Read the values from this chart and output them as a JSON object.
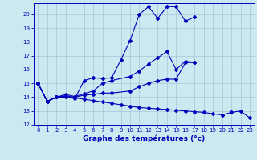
{
  "xlabel": "Graphe des températures (°c)",
  "bg_color": "#cce8f0",
  "grid_color": "#a0c8d8",
  "line_color": "#0000bb",
  "xlim": [
    -0.5,
    23.5
  ],
  "ylim": [
    12,
    20.8
  ],
  "xticks": [
    0,
    1,
    2,
    3,
    4,
    5,
    6,
    7,
    8,
    9,
    10,
    11,
    12,
    13,
    14,
    15,
    16,
    17,
    18,
    19,
    20,
    21,
    22,
    23
  ],
  "yticks": [
    12,
    13,
    14,
    15,
    16,
    17,
    18,
    19,
    20
  ],
  "line1_x": [
    0,
    1,
    2,
    3,
    4,
    5,
    6,
    7,
    8,
    9,
    10,
    11,
    12,
    13,
    14,
    15,
    16,
    17
  ],
  "line1_y": [
    15.0,
    13.7,
    14.0,
    14.0,
    13.9,
    15.2,
    15.4,
    15.35,
    15.4,
    16.7,
    18.1,
    20.0,
    20.55,
    19.7,
    20.55,
    20.55,
    19.5,
    19.8
  ],
  "line2_x": [
    0,
    1,
    2,
    3,
    4,
    5,
    6,
    7,
    8,
    10,
    11,
    12,
    13,
    14,
    15,
    16,
    17
  ],
  "line2_y": [
    15.0,
    13.7,
    14.0,
    14.2,
    14.05,
    14.25,
    14.45,
    15.0,
    15.2,
    15.5,
    15.9,
    16.4,
    16.85,
    17.3,
    16.0,
    16.6,
    16.5
  ],
  "line3_x": [
    0,
    1,
    2,
    3,
    4,
    5,
    6,
    7,
    8,
    9,
    10,
    11,
    12,
    13,
    14,
    15,
    16,
    17,
    18,
    19,
    20,
    21,
    22,
    23
  ],
  "line3_y": [
    15.0,
    13.7,
    14.0,
    14.05,
    13.95,
    13.85,
    13.75,
    13.65,
    13.55,
    13.45,
    13.35,
    13.25,
    13.2,
    13.15,
    13.1,
    13.05,
    13.0,
    12.95,
    12.9,
    12.8,
    12.72,
    12.9,
    13.0,
    12.5
  ],
  "line4_x": [
    0,
    1,
    2,
    3,
    4,
    5,
    6,
    7,
    8,
    10,
    11,
    12,
    13,
    14,
    15,
    16,
    17
  ],
  "line4_y": [
    15.0,
    13.7,
    14.0,
    14.1,
    14.0,
    14.15,
    14.2,
    14.3,
    14.3,
    14.45,
    14.75,
    15.0,
    15.2,
    15.3,
    15.3,
    16.5,
    16.5
  ]
}
